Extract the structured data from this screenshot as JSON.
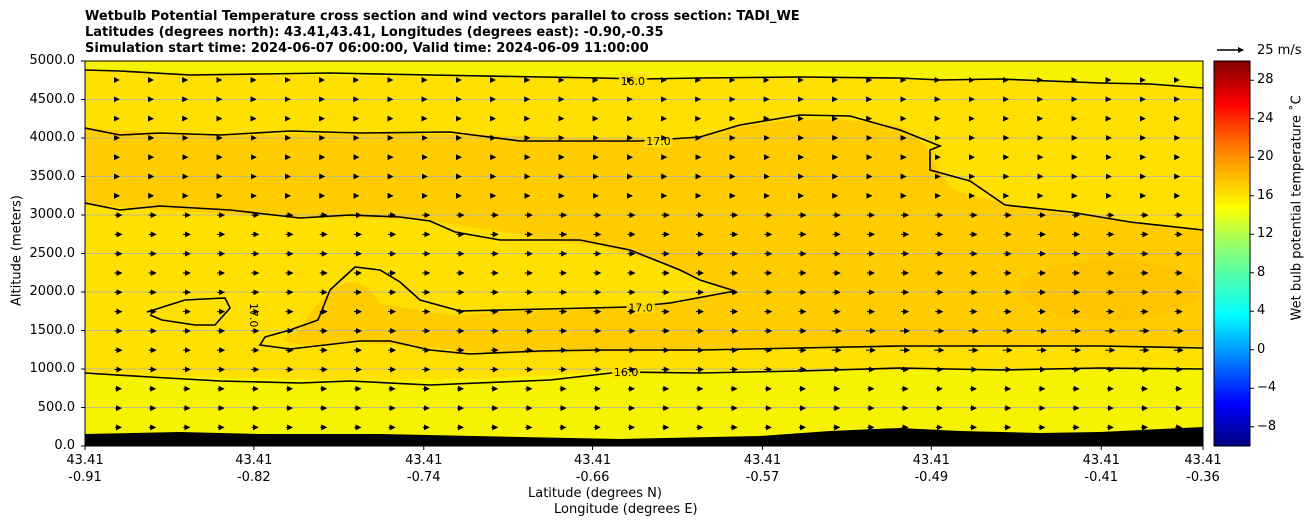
{
  "title_lines": [
    "Wetbulb Potential Temperature cross section and wind vectors parallel to cross section: TADI_WE",
    "Latitudes (degrees north): 43.41,43.41, Longitudes (degrees east): -0.90,-0.35",
    "Simulation start time: 2024-06-07 06:00:00, Valid time: 2024-06-09 11:00:00"
  ],
  "quiver_key_label": "25 m/s",
  "colors": {
    "background": "#f6f200",
    "band_16_17": "#ffe000",
    "band_17_18": "#ffcc00",
    "terrain": "#000000",
    "contour": "#000000",
    "grid": "#b0b0b0"
  },
  "chart_data": {
    "type": "contour-cross-section",
    "title": "Wetbulb Potential Temperature cross section and wind vectors parallel to cross section: TADI_WE",
    "xlabel_lat": "Latitude (degrees N)",
    "xlabel_lon": "Longitude (degrees E)",
    "ylabel": "Altitude (meters)",
    "ylim": [
      0,
      5000
    ],
    "y_ticks": [
      "0.0",
      "500.0",
      "1000.0",
      "1500.0",
      "2000.0",
      "2500.0",
      "3000.0",
      "3500.0",
      "4000.0",
      "4500.0",
      "5000.0"
    ],
    "x_tick_lat": [
      "43.41",
      "43.41",
      "43.41",
      "43.41",
      "43.41",
      "43.41",
      "43.41",
      "43.41"
    ],
    "x_tick_lon": [
      "-0.91",
      "-0.82",
      "-0.74",
      "-0.66",
      "-0.57",
      "-0.49",
      "-0.41",
      "-0.36"
    ],
    "x_tick_fraction": [
      0.0,
      0.151,
      0.303,
      0.454,
      0.606,
      0.757,
      0.909,
      1.0
    ],
    "contour_labels": [
      {
        "text": "16.0",
        "level": 16,
        "x_frac": 0.49,
        "alt": 4740
      },
      {
        "text": "17.0",
        "level": 17,
        "x_frac": 0.513,
        "alt": 3960
      },
      {
        "text": "17.0",
        "level": 17,
        "x_frac": 0.497,
        "alt": 1800
      },
      {
        "text": "16.0",
        "level": 16,
        "x_frac": 0.484,
        "alt": 960
      },
      {
        "text": "17.0",
        "level": 17,
        "x_frac": 0.151,
        "alt": 1700
      }
    ],
    "colorbar": {
      "label": "Wet bulb potential temperature $^\\circ$C",
      "label_display": "Wet bulb potential temperature ˚C",
      "range": [
        -10,
        30
      ],
      "ticks": [
        "28",
        "24",
        "20",
        "16",
        "12",
        "8",
        "4",
        "0",
        "−4",
        "−8"
      ],
      "tick_values": [
        28,
        24,
        20,
        16,
        12,
        8,
        4,
        0,
        -4,
        -8
      ],
      "colormap": "jet"
    },
    "wind_vectors_reference": "25 m/s"
  }
}
